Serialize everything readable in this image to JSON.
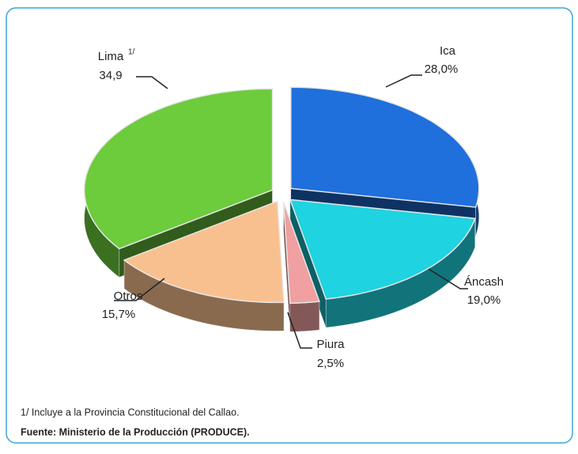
{
  "chart_data": {
    "type": "pie",
    "categories": [
      "Ica",
      "Áncash",
      "Piura",
      "Otros",
      "Lima"
    ],
    "values": [
      28.0,
      19.0,
      2.5,
      15.7,
      34.9
    ],
    "value_labels": [
      "28,0%",
      "19,0%",
      "2,5%",
      "15,7%",
      "34,9"
    ],
    "label_superscripts": [
      null,
      null,
      null,
      null,
      "1/"
    ],
    "colors": [
      "#1f6fdc",
      "#1fd3e0",
      "#f0a0a0",
      "#f9c08f",
      "#6ccc3c"
    ]
  },
  "notes": [
    "1/ Incluye a la Provincia Constitucional del Callao.",
    "Fuente: Ministerio de la Producción (PRODUCE)."
  ]
}
